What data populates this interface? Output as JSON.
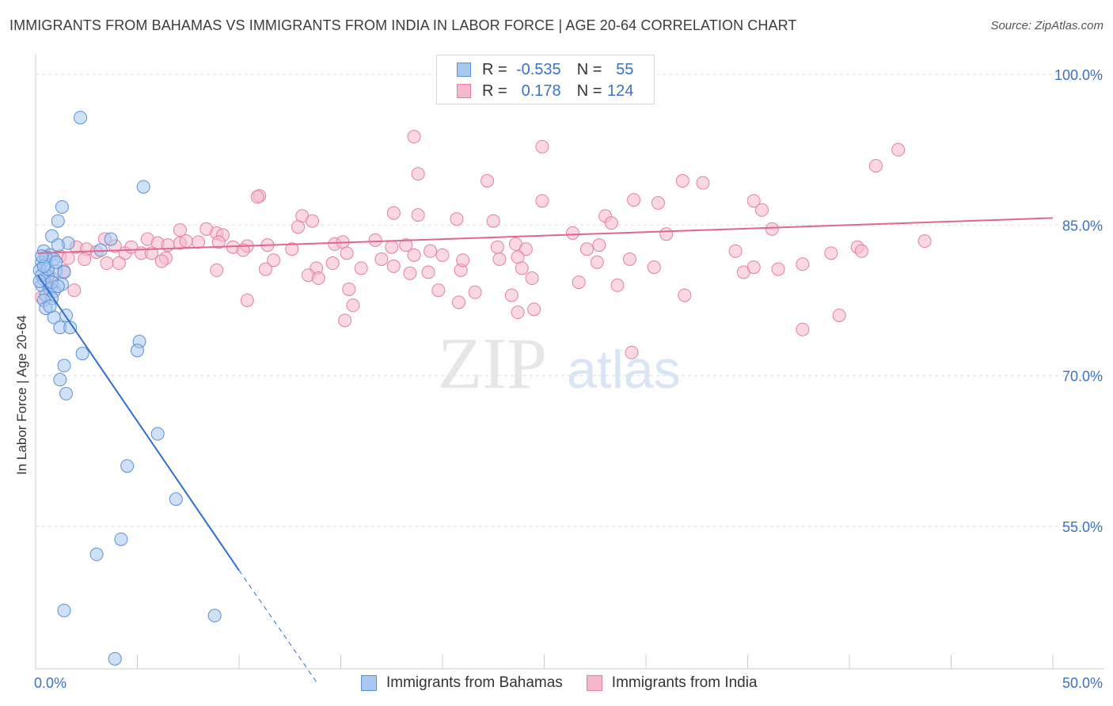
{
  "title": "IMMIGRANTS FROM BAHAMAS VS IMMIGRANTS FROM INDIA IN LABOR FORCE | AGE 20-64 CORRELATION CHART",
  "source": "Source: ZipAtlas.com",
  "watermark": {
    "zip": "ZIP",
    "atlas": "atlas"
  },
  "legend": {
    "r_label": "R =",
    "n_label": "N =",
    "rows": [
      {
        "series": "Immigrants from Bahamas",
        "r": "-0.535",
        "n": "55"
      },
      {
        "series": "Immigrants from India",
        "r": "0.178",
        "n": "124"
      }
    ]
  },
  "colors": {
    "bahamas_fill": "#a8c8f0",
    "bahamas_stroke": "#5b8fd6",
    "bahamas_line": "#2f6fd0",
    "india_fill": "#f6b8cc",
    "india_stroke": "#e37fa0",
    "india_line": "#e0668f",
    "tick_label": "#3a72c4",
    "grid": "#dcdcdc"
  },
  "chart_data": {
    "type": "scatter",
    "title": "IMMIGRANTS FROM BAHAMAS VS IMMIGRANTS FROM INDIA IN LABOR FORCE | AGE 20-64 CORRELATION CHART",
    "xlabel": "",
    "ylabel": "In Labor Force | Age 20-64",
    "xlim": [
      0,
      50
    ],
    "ylim": [
      40.8,
      101.5
    ],
    "x_tick_labels": [
      "0.0%",
      "50.0%"
    ],
    "y_ticks": [
      55,
      70,
      85,
      100
    ],
    "y_tick_labels": [
      "55.0%",
      "70.0%",
      "85.0%",
      "100.0%"
    ],
    "series": [
      {
        "name": "Immigrants from Bahamas",
        "r": -0.535,
        "n": 55,
        "trend": {
          "x0": 0.1,
          "y0": 80.0,
          "x1": 10.0,
          "y1": 50.6,
          "dash_to_x": 13.8,
          "dash_to_y": 39.5
        },
        "points": [
          [
            2.2,
            95.7
          ],
          [
            5.3,
            88.8
          ],
          [
            1.3,
            86.8
          ],
          [
            1.1,
            85.4
          ],
          [
            0.8,
            83.9
          ],
          [
            1.6,
            83.2
          ],
          [
            3.7,
            83.6
          ],
          [
            1.1,
            83.0
          ],
          [
            3.2,
            82.5
          ],
          [
            0.4,
            82.4
          ],
          [
            0.7,
            82.0
          ],
          [
            0.9,
            81.6
          ],
          [
            0.3,
            81.3
          ],
          [
            0.5,
            81.1
          ],
          [
            0.2,
            80.5
          ],
          [
            1.0,
            80.4
          ],
          [
            1.4,
            80.3
          ],
          [
            0.6,
            79.9
          ],
          [
            0.4,
            79.6
          ],
          [
            1.3,
            79.1
          ],
          [
            0.3,
            79.0
          ],
          [
            0.7,
            78.6
          ],
          [
            0.9,
            78.4
          ],
          [
            0.5,
            78.0
          ],
          [
            0.8,
            77.7
          ],
          [
            0.4,
            77.5
          ],
          [
            0.5,
            76.7
          ],
          [
            1.5,
            76.0
          ],
          [
            0.9,
            75.8
          ],
          [
            1.2,
            74.8
          ],
          [
            1.7,
            74.8
          ],
          [
            5.1,
            73.4
          ],
          [
            5.0,
            72.5
          ],
          [
            2.3,
            72.2
          ],
          [
            1.4,
            71.0
          ],
          [
            1.2,
            69.6
          ],
          [
            1.5,
            68.2
          ],
          [
            6.0,
            64.2
          ],
          [
            4.5,
            61.0
          ],
          [
            6.9,
            57.7
          ],
          [
            4.2,
            53.7
          ],
          [
            3.0,
            52.2
          ],
          [
            1.4,
            46.6
          ],
          [
            8.8,
            46.1
          ],
          [
            3.9,
            41.8
          ],
          [
            0.5,
            81.8
          ],
          [
            0.3,
            80.0
          ],
          [
            0.6,
            80.6
          ],
          [
            0.8,
            79.3
          ],
          [
            0.2,
            79.4
          ],
          [
            1.0,
            81.3
          ],
          [
            0.4,
            80.9
          ],
          [
            0.7,
            76.9
          ],
          [
            1.1,
            78.9
          ],
          [
            0.3,
            81.9
          ]
        ]
      },
      {
        "name": "Immigrants from India",
        "r": 0.178,
        "n": 124,
        "trend": {
          "x0": 0.1,
          "y0": 82.2,
          "x1": 50.0,
          "y1": 85.7
        },
        "points": [
          [
            18.6,
            93.8
          ],
          [
            24.9,
            92.8
          ],
          [
            18.8,
            90.1
          ],
          [
            31.8,
            89.4
          ],
          [
            22.2,
            89.4
          ],
          [
            32.8,
            89.2
          ],
          [
            41.3,
            90.9
          ],
          [
            42.4,
            92.5
          ],
          [
            11.0,
            87.9
          ],
          [
            10.9,
            87.8
          ],
          [
            24.9,
            87.4
          ],
          [
            29.4,
            87.5
          ],
          [
            30.6,
            87.2
          ],
          [
            35.3,
            87.4
          ],
          [
            35.7,
            86.5
          ],
          [
            17.6,
            86.2
          ],
          [
            18.8,
            86.0
          ],
          [
            20.7,
            85.6
          ],
          [
            22.5,
            85.4
          ],
          [
            13.1,
            85.9
          ],
          [
            13.6,
            85.4
          ],
          [
            28.0,
            85.9
          ],
          [
            28.3,
            85.2
          ],
          [
            12.9,
            84.8
          ],
          [
            36.2,
            84.6
          ],
          [
            31.0,
            84.1
          ],
          [
            26.4,
            84.2
          ],
          [
            7.1,
            84.5
          ],
          [
            8.4,
            84.6
          ],
          [
            8.9,
            84.2
          ],
          [
            9.2,
            84.0
          ],
          [
            3.4,
            83.6
          ],
          [
            5.5,
            83.6
          ],
          [
            6.0,
            83.2
          ],
          [
            7.1,
            83.2
          ],
          [
            8.0,
            83.3
          ],
          [
            9.7,
            82.8
          ],
          [
            10.4,
            82.9
          ],
          [
            11.4,
            83.0
          ],
          [
            12.6,
            82.6
          ],
          [
            14.7,
            83.1
          ],
          [
            15.1,
            83.3
          ],
          [
            15.3,
            82.2
          ],
          [
            16.7,
            83.5
          ],
          [
            17.5,
            82.8
          ],
          [
            18.2,
            83.0
          ],
          [
            18.6,
            82.0
          ],
          [
            19.4,
            82.4
          ],
          [
            20.0,
            82.0
          ],
          [
            22.7,
            82.8
          ],
          [
            23.6,
            83.1
          ],
          [
            24.1,
            82.6
          ],
          [
            27.1,
            82.6
          ],
          [
            27.7,
            83.0
          ],
          [
            2.0,
            82.8
          ],
          [
            2.5,
            82.6
          ],
          [
            3.0,
            82.3
          ],
          [
            3.9,
            82.9
          ],
          [
            4.4,
            82.2
          ],
          [
            4.7,
            82.8
          ],
          [
            5.2,
            82.2
          ],
          [
            6.4,
            81.7
          ],
          [
            6.5,
            83.0
          ],
          [
            7.4,
            83.4
          ],
          [
            9.0,
            83.3
          ],
          [
            10.2,
            82.5
          ],
          [
            1.2,
            81.9
          ],
          [
            1.6,
            81.7
          ],
          [
            2.4,
            81.6
          ],
          [
            3.5,
            81.2
          ],
          [
            4.1,
            81.2
          ],
          [
            5.7,
            82.2
          ],
          [
            6.2,
            81.4
          ],
          [
            11.7,
            81.5
          ],
          [
            14.6,
            81.2
          ],
          [
            17.0,
            81.6
          ],
          [
            17.6,
            80.9
          ],
          [
            18.4,
            80.2
          ],
          [
            20.9,
            80.5
          ],
          [
            21.0,
            81.5
          ],
          [
            22.8,
            81.6
          ],
          [
            23.7,
            81.8
          ],
          [
            27.6,
            81.3
          ],
          [
            29.2,
            81.6
          ],
          [
            34.4,
            82.4
          ],
          [
            37.7,
            81.1
          ],
          [
            39.1,
            82.2
          ],
          [
            40.4,
            82.8
          ],
          [
            40.6,
            82.4
          ],
          [
            43.7,
            83.4
          ],
          [
            8.9,
            80.5
          ],
          [
            11.3,
            80.6
          ],
          [
            13.8,
            80.7
          ],
          [
            16.0,
            80.7
          ],
          [
            19.3,
            80.3
          ],
          [
            23.9,
            80.7
          ],
          [
            30.4,
            80.8
          ],
          [
            34.8,
            80.3
          ],
          [
            35.3,
            80.8
          ],
          [
            36.5,
            80.6
          ],
          [
            13.4,
            80.0
          ],
          [
            13.9,
            79.7
          ],
          [
            24.4,
            79.7
          ],
          [
            26.7,
            79.3
          ],
          [
            15.4,
            78.6
          ],
          [
            21.6,
            78.3
          ],
          [
            31.9,
            78.0
          ],
          [
            10.4,
            77.5
          ],
          [
            19.8,
            78.5
          ],
          [
            23.4,
            78.0
          ],
          [
            28.6,
            79.0
          ],
          [
            39.5,
            76.0
          ],
          [
            20.8,
            77.3
          ],
          [
            15.6,
            77.0
          ],
          [
            24.5,
            76.6
          ],
          [
            23.7,
            76.3
          ],
          [
            37.7,
            74.6
          ],
          [
            15.2,
            75.5
          ],
          [
            29.3,
            72.3
          ],
          [
            0.8,
            79.7
          ],
          [
            1.4,
            80.4
          ],
          [
            0.6,
            79.0
          ],
          [
            1.9,
            78.5
          ],
          [
            0.3,
            77.8
          ]
        ]
      }
    ]
  }
}
